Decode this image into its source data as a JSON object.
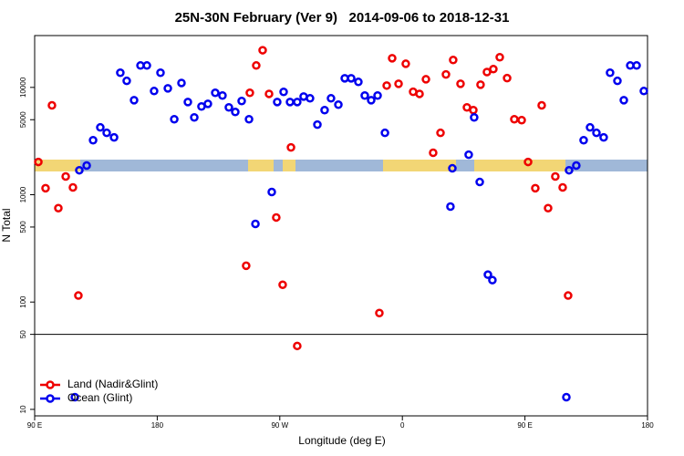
{
  "chart_data": {
    "type": "scatter",
    "title": "25N-30N February (Ver 9)   2014-09-06 to 2018-12-31",
    "x_label": "Longitude (deg E)",
    "y_label": "N Total",
    "log_y": true,
    "legend": "bottomleft",
    "reference_line": 50,
    "xlim": [
      90,
      540
    ],
    "xticks": [
      {
        "value": 90,
        "label": "90 E"
      },
      180,
      {
        "value": 270,
        "label": "90 W"
      },
      {
        "value": 360,
        "label": "0"
      },
      {
        "value": 450,
        "label": "90 E"
      },
      {
        "value": 540,
        "label": "180"
      }
    ],
    "ylim": [
      8.7,
      30400
    ],
    "yticks": [
      10,
      50,
      100,
      500,
      1000,
      5000,
      10000
    ],
    "series": [
      {
        "name": "Land (Nadir&Glint)",
        "color": "#ee0000",
        "x": [
          92.7,
          98.0,
          102.7,
          107.4,
          112.8,
          118.1,
          122.1,
          245.3,
          248.0,
          252.7,
          257.4,
          262.1,
          267.4,
          272.1,
          278.2,
          282.8,
          343.1,
          348.5,
          352.5,
          357.2,
          362.5,
          367.9,
          372.6,
          377.3,
          382.6,
          388.0,
          392.0,
          397.3,
          402.7,
          407.4,
          412.1,
          417.4,
          422.1,
          426.8,
          431.5,
          436.9,
          442.2,
          447.6,
          452.3,
          457.6,
          462.3,
          467.0,
          472.3,
          477.7,
          481.7
        ],
        "values": [
          2020,
          1150,
          6800,
          750,
          1480,
          1170,
          115,
          218,
          8900,
          16000,
          22200,
          8700,
          614,
          145,
          2760,
          39,
          79,
          10400,
          18700,
          10800,
          16600,
          9100,
          8700,
          11900,
          2460,
          3770,
          13200,
          18000,
          10800,
          6510,
          6140,
          10600,
          13900,
          14800,
          19100,
          12200,
          5050,
          4950,
          2020,
          1150,
          6800,
          750,
          1480,
          1170,
          115
        ]
      },
      {
        "name": "Ocean (Glint)",
        "color": "#0000ee",
        "x": [
          119.5,
          122.8,
          128.2,
          132.9,
          138.2,
          142.9,
          148.3,
          152.9,
          157.6,
          163.0,
          167.7,
          172.4,
          177.7,
          182.4,
          187.8,
          192.5,
          197.8,
          202.5,
          207.2,
          212.5,
          217.2,
          222.6,
          227.9,
          232.6,
          237.3,
          242.0,
          247.4,
          252.1,
          264.1,
          268.1,
          272.8,
          277.5,
          282.8,
          287.5,
          292.2,
          297.6,
          302.9,
          307.6,
          313.0,
          317.7,
          322.4,
          327.7,
          332.4,
          337.1,
          341.8,
          347.2,
          395.3,
          396.7,
          408.7,
          412.7,
          416.8,
          422.8,
          426.1,
          480.4,
          482.4,
          487.7,
          493.1,
          497.8,
          502.5,
          507.8,
          512.5,
          517.9,
          522.6,
          527.3,
          532.0,
          537.3
        ],
        "values": [
          13,
          1690,
          1870,
          3220,
          4240,
          3770,
          3420,
          13700,
          11500,
          7600,
          16000,
          16000,
          9250,
          13700,
          9800,
          5050,
          11000,
          7300,
          5250,
          6640,
          7030,
          8900,
          8400,
          6510,
          5900,
          7470,
          5050,
          535,
          1060,
          7310,
          9080,
          7310,
          7310,
          8220,
          7910,
          4500,
          6140,
          7910,
          6900,
          12160,
          12160,
          11250,
          8400,
          7600,
          8400,
          3770,
          776,
          1762,
          2360,
          5250,
          1314,
          180,
          160,
          13,
          1690,
          1870,
          3220,
          4240,
          3770,
          3420,
          13700,
          11500,
          7600,
          16000,
          16000,
          9250
        ]
      }
    ]
  }
}
